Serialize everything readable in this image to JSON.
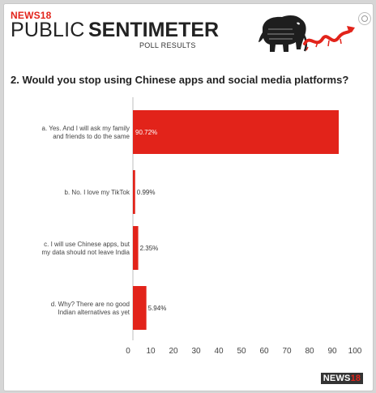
{
  "header": {
    "brand": "NEWS18",
    "title_part1": "PUBLIC",
    "title_part2": "SENTIMETER",
    "subtitle": "POLL RESULTS",
    "question": "2. Would  you stop using Chinese apps and social media platforms?"
  },
  "footer": {
    "logo_part1": "NEWS",
    "logo_part2": "18"
  },
  "icons": [
    "gear-icon",
    "elephant-icon",
    "dragon-icon"
  ],
  "colors": {
    "bar": "#e2231a",
    "accent": "#e2231a"
  },
  "chart_data": {
    "type": "bar",
    "orientation": "horizontal",
    "categories": [
      [
        "a. Yes. And I will ask my family",
        "and friends to do the same"
      ],
      [
        "b. No. I love my TikTok"
      ],
      [
        "c. I will use Chinese apps, but",
        "my data should not leave India"
      ],
      [
        "d. Why? There are no good",
        "Indian alternatives as yet"
      ]
    ],
    "values": [
      90.72,
      0.99,
      2.35,
      5.94
    ],
    "value_labels": [
      "90.72%",
      "0.99%",
      "2.35%",
      "5.94%"
    ],
    "xlim": [
      0,
      100
    ],
    "xticks": [
      0,
      10,
      20,
      30,
      40,
      50,
      60,
      70,
      80,
      90,
      100
    ],
    "grid": false
  }
}
